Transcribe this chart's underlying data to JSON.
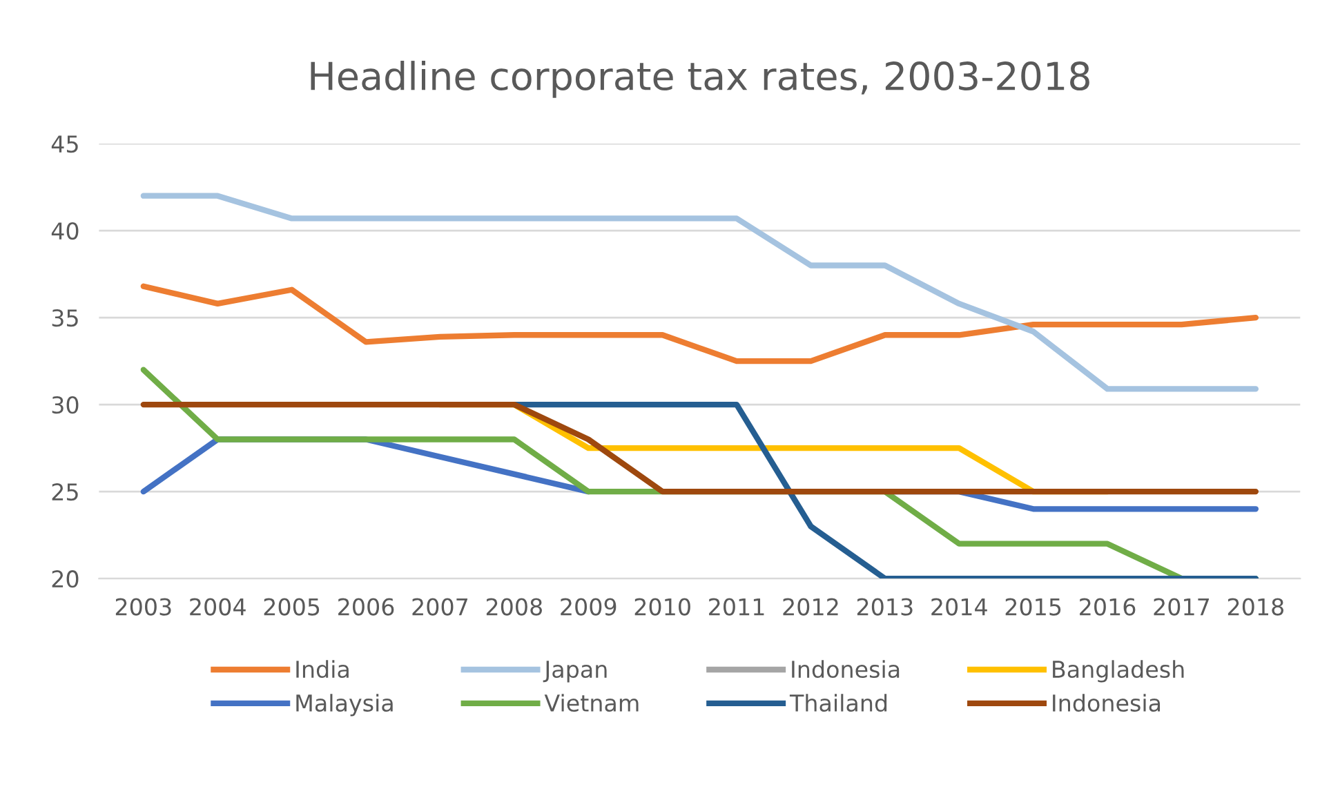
{
  "chart_data": {
    "type": "line",
    "title": "Headline corporate tax rates, 2003-2018",
    "categories": [
      "2003",
      "2004",
      "2005",
      "2006",
      "2007",
      "2008",
      "2009",
      "2010",
      "2011",
      "2012",
      "2013",
      "2014",
      "2015",
      "2016",
      "2017",
      "2018"
    ],
    "series": [
      {
        "name": "India",
        "color": "#ed7d31",
        "values": [
          36.8,
          35.8,
          36.6,
          33.6,
          33.9,
          34,
          34,
          34,
          32.5,
          32.5,
          34,
          34,
          34.6,
          34.6,
          34.6,
          35
        ]
      },
      {
        "name": "Japan",
        "color": "#a5c3e0",
        "values": [
          42,
          42,
          40.7,
          40.7,
          40.7,
          40.7,
          40.7,
          40.7,
          40.7,
          38,
          38,
          35.8,
          34.2,
          30.9,
          30.9,
          30.9
        ]
      },
      {
        "name": "Indonesia",
        "color": "#a5a5a5",
        "values": [
          null,
          null,
          null,
          null,
          null,
          null,
          null,
          null,
          null,
          null,
          null,
          null,
          null,
          null,
          null,
          null
        ]
      },
      {
        "name": "Bangladesh",
        "color": "#ffc000",
        "values": [
          null,
          null,
          null,
          null,
          30,
          30,
          27.5,
          27.5,
          27.5,
          27.5,
          27.5,
          27.5,
          25,
          25,
          null,
          null
        ]
      },
      {
        "name": "Malaysia",
        "color": "#4472c4",
        "values": [
          25,
          28,
          28,
          28,
          27,
          26,
          25,
          null,
          null,
          null,
          25,
          25,
          24,
          24,
          24,
          24
        ]
      },
      {
        "name": "Vietnam",
        "color": "#70ad47",
        "values": [
          32,
          28,
          28,
          28,
          28,
          28,
          25,
          25,
          25,
          25,
          25,
          22,
          22,
          22,
          20,
          20
        ]
      },
      {
        "name": "Thailand",
        "color": "#255e91",
        "values": [
          null,
          null,
          null,
          null,
          null,
          30,
          30,
          30,
          30,
          23,
          20,
          20,
          20,
          20,
          20,
          20
        ]
      },
      {
        "name": "Indonesia",
        "color": "#9e480e",
        "values": [
          30,
          30,
          30,
          30,
          30,
          30,
          28,
          25,
          25,
          25,
          25,
          25,
          25,
          25,
          25,
          25
        ]
      }
    ],
    "ylim": [
      20,
      45
    ],
    "yticks": [
      20,
      25,
      30,
      35,
      40,
      45
    ],
    "grid": "y",
    "legend": "bottom",
    "marker": "none",
    "line_style": "solid"
  }
}
